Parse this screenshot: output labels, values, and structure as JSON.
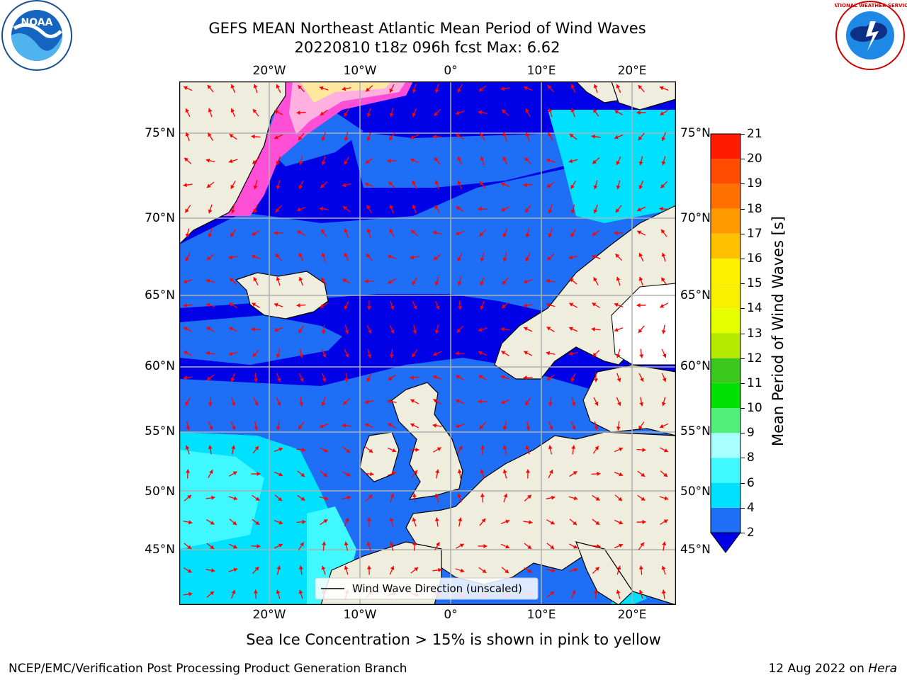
{
  "title": {
    "line1": "GEFS MEAN Northeast Atlantic Mean Period of Wind Waves",
    "line2": "20220810 t18z 096h fcst   Max: 6.62"
  },
  "logos": {
    "left": {
      "icon": "noaa-logo",
      "text": "NOAA"
    },
    "right": {
      "icon": "nws-logo",
      "text": "NATIONAL WEATHER SERVICE"
    }
  },
  "map": {
    "lon_labels": [
      "20°W",
      "10°W",
      "0°",
      "10°E",
      "20°E"
    ],
    "lat_labels": [
      "75°N",
      "70°N",
      "65°N",
      "60°N",
      "55°N",
      "50°N",
      "45°N"
    ],
    "legend_label": "Wind Wave Direction (unscaled)",
    "arrow_color": "#ff0000",
    "land_color": "#efedde",
    "grid_color": "#b0b0b0"
  },
  "colorbar": {
    "label": "Mean Period of Wind Waves [s]",
    "ticks": [
      "2",
      "4",
      "6",
      "8",
      "9",
      "10",
      "11",
      "12",
      "13",
      "14",
      "15",
      "16",
      "17",
      "18",
      "19",
      "20",
      "21"
    ],
    "colors": [
      "#1e6ff5",
      "#00e0ff",
      "#40f8ff",
      "#a8ffff",
      "#50f07a",
      "#00e000",
      "#3ac81e",
      "#b4ea00",
      "#e4ff00",
      "#f8f000",
      "#fff000",
      "#ffc000",
      "#ff9a00",
      "#ff7000",
      "#ff4c00",
      "#ff1a00"
    ],
    "extend_color": "#0000e6"
  },
  "caption": "Sea Ice Concentration > 15% is shown in pink to yellow",
  "footer": {
    "left": "NCEP/EMC/Verification Post Processing Product Generation Branch",
    "right_date": "12 Aug 2022 on ",
    "right_host": "Hera"
  }
}
